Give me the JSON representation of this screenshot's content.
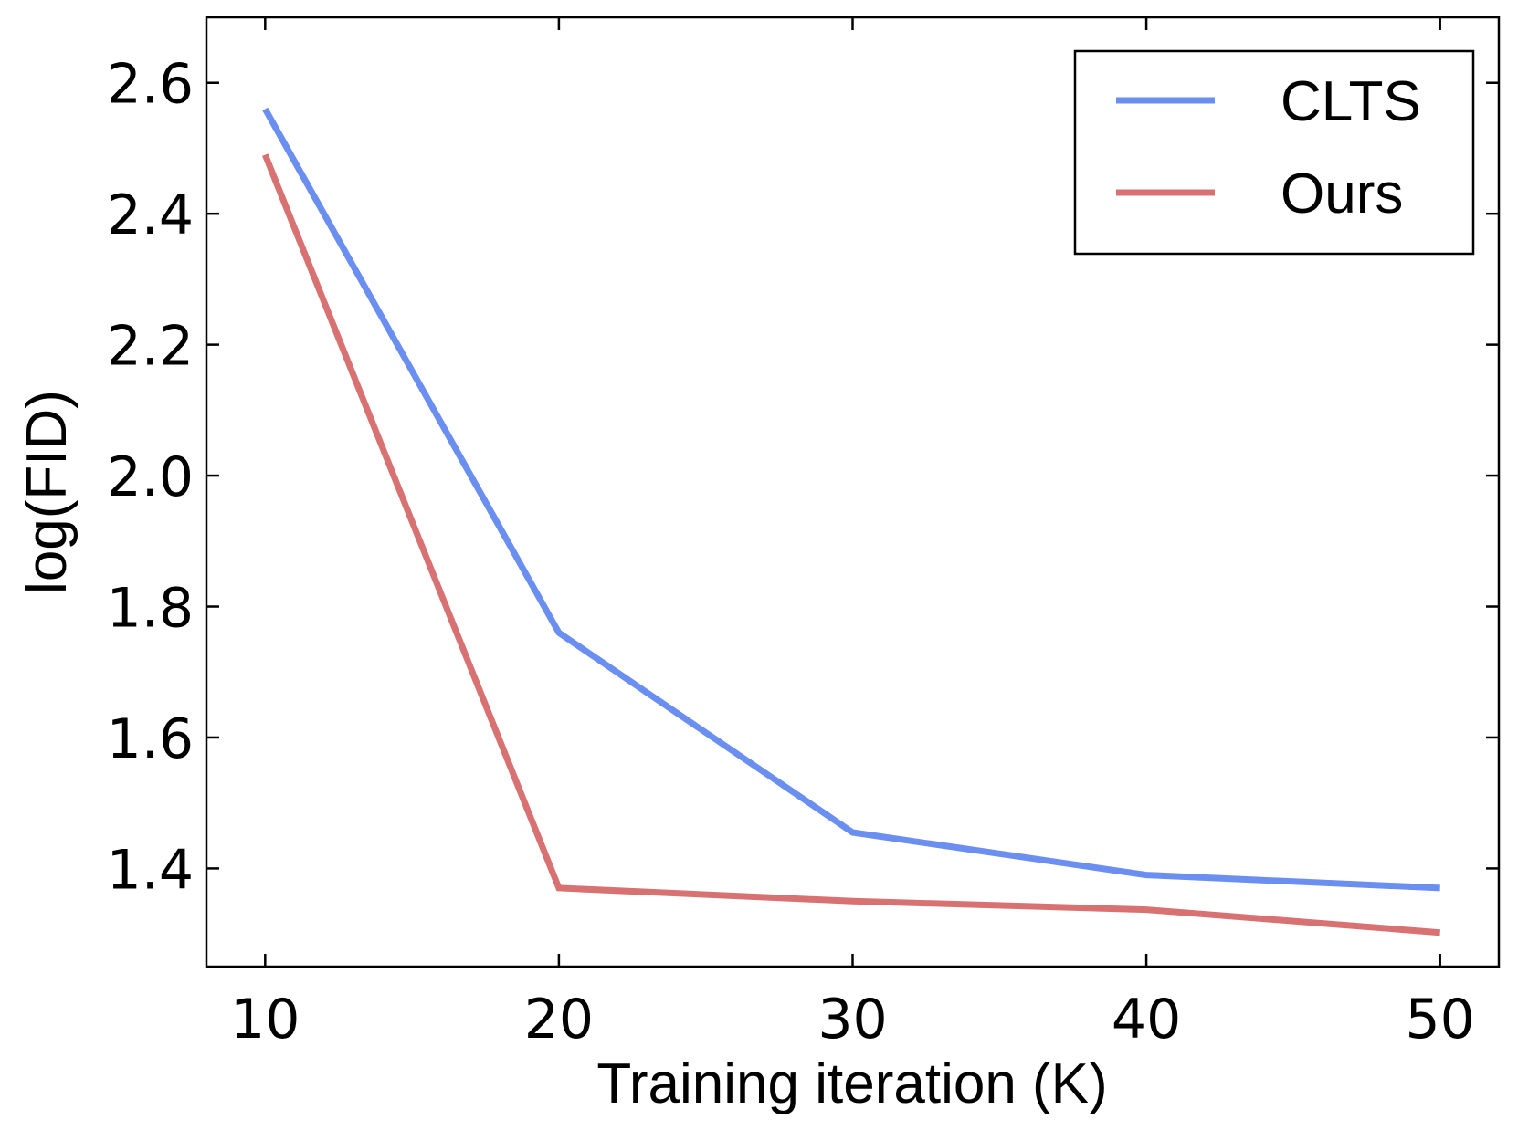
{
  "chart_data": {
    "type": "line",
    "title": "",
    "xlabel": "Training iteration (K)",
    "ylabel": "log(FID)",
    "x": [
      10,
      20,
      30,
      40,
      50
    ],
    "xlim": [
      8,
      52
    ],
    "ylim": [
      1.25,
      2.7
    ],
    "xticks": [
      10,
      20,
      30,
      40,
      50
    ],
    "yticks": [
      1.4,
      1.6,
      1.8,
      2.0,
      2.2,
      2.4,
      2.6
    ],
    "xtick_labels": [
      "10",
      "20",
      "30",
      "40",
      "50"
    ],
    "ytick_labels": [
      "1.4",
      "1.6",
      "1.8",
      "2.0",
      "2.2",
      "2.4",
      "2.6"
    ],
    "grid": false,
    "legend_position": "top-right",
    "series": [
      {
        "name": "CLTS",
        "color": "#6b8ff0",
        "values": [
          2.56,
          1.76,
          1.455,
          1.39,
          1.37
        ]
      },
      {
        "name": "Ours",
        "color": "#d87272",
        "values": [
          2.49,
          1.37,
          1.35,
          1.337,
          1.302
        ]
      }
    ]
  }
}
